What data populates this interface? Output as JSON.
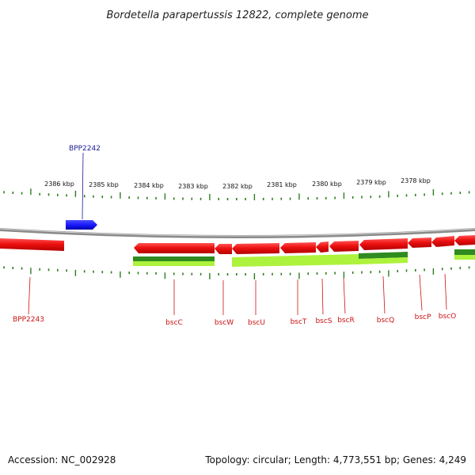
{
  "title": "Bordetella parapertussis 12822, complete genome",
  "colors": {
    "forward_gene": "#1a1aff",
    "reverse_gene": "#ee1111",
    "tick": "#2e7d1e",
    "backbone": "#888888",
    "forward_label": "#1a1a99",
    "reverse_label": "#cc1111",
    "feature_dark_green": "#2f8a1f",
    "feature_light_green": "#adf23c"
  },
  "scale": {
    "unit": "kbp",
    "labels": [
      "2386 kbp",
      "2385 kbp",
      "2384 kbp",
      "2383 kbp",
      "2382 kbp",
      "2381 kbp",
      "2380 kbp",
      "2379 kbp",
      "2378 kbp"
    ]
  },
  "genes": [
    {
      "name": "BPP2242",
      "strand": "forward"
    },
    {
      "name": "BPP2243",
      "strand": "reverse"
    },
    {
      "name": "bscC",
      "strand": "reverse"
    },
    {
      "name": "bscW",
      "strand": "reverse"
    },
    {
      "name": "bscU",
      "strand": "reverse"
    },
    {
      "name": "bscT",
      "strand": "reverse"
    },
    {
      "name": "bscS",
      "strand": "reverse"
    },
    {
      "name": "bscR",
      "strand": "reverse"
    },
    {
      "name": "bscQ",
      "strand": "reverse"
    },
    {
      "name": "bscP",
      "strand": "reverse"
    },
    {
      "name": "bscO",
      "strand": "reverse"
    }
  ],
  "footer": {
    "accession": "Accession: NC_002928",
    "summary": "Topology: circular; Length: 4,773,551 bp; Genes: 4,249"
  }
}
